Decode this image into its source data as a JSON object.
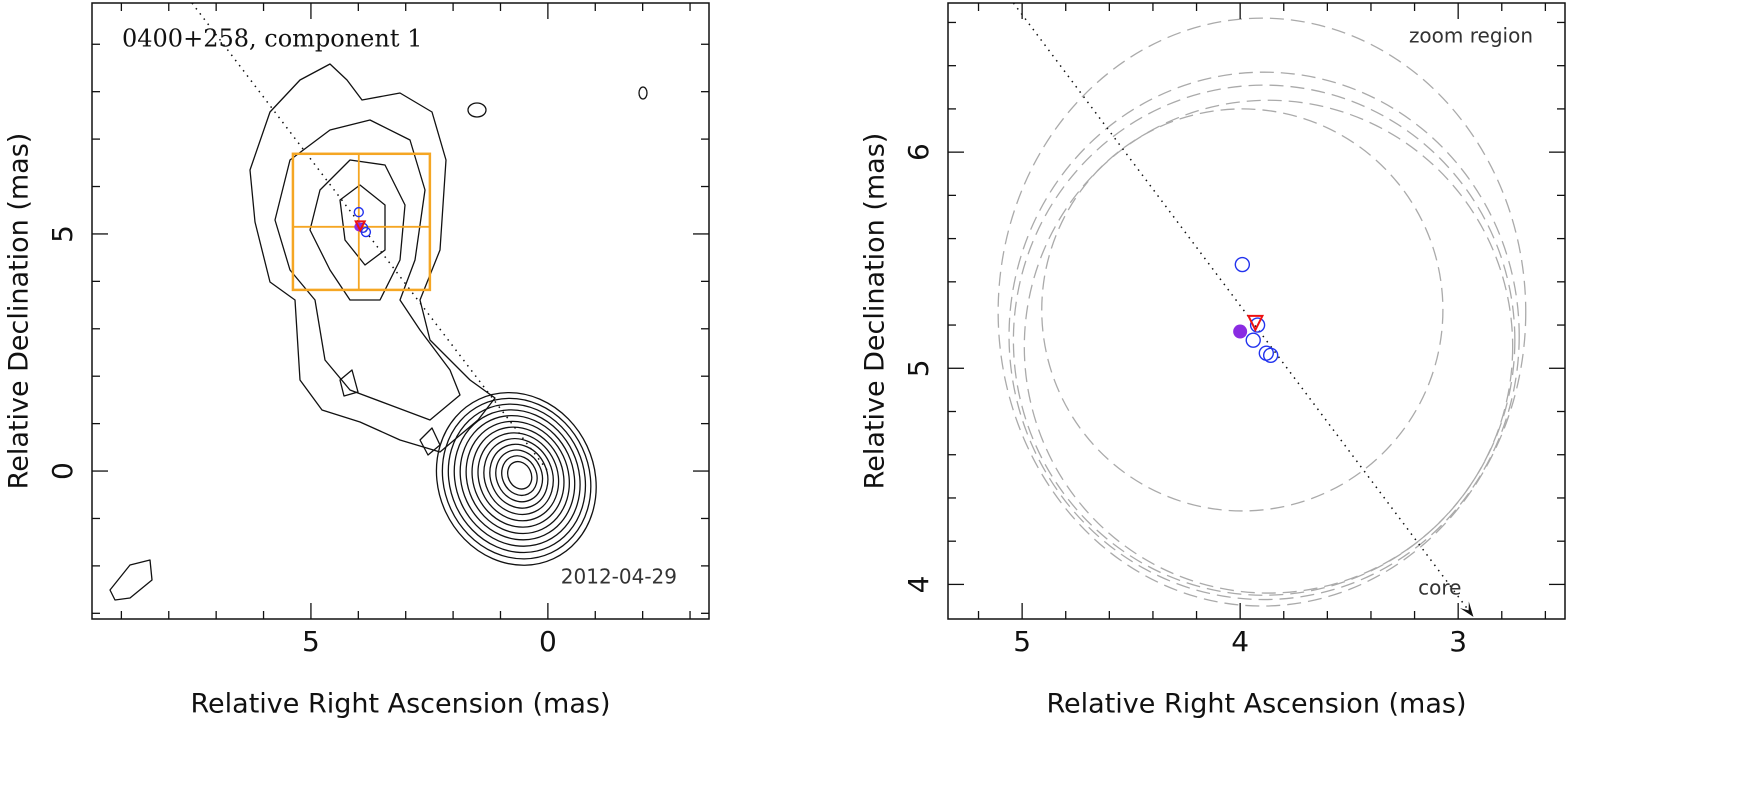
{
  "chart_data": [
    {
      "type": "scatter",
      "title": "0400+258, component 1",
      "annotation": "2012-04-29",
      "xlabel": "Relative Right Ascension (mas)",
      "ylabel": "Relative Declination (mas)",
      "xlim": [
        9.62,
        -3.4
      ],
      "ylim": [
        -3.12,
        9.87
      ],
      "xticks": [
        5,
        0
      ],
      "yticks": [
        0,
        5
      ],
      "xminorticks": [
        9,
        8,
        7,
        6,
        4,
        3,
        2,
        1,
        -1,
        -2,
        -3
      ],
      "yminorticks": [
        -3,
        -2,
        -1,
        1,
        2,
        3,
        4,
        6,
        7,
        8,
        9
      ],
      "jet_line": {
        "x": [
          7.51,
          0
        ],
        "y": [
          9.87,
          0
        ]
      },
      "region": {
        "x": [
          5.38,
          2.49
        ],
        "y": [
          3.82,
          6.69
        ],
        "color": "#f5a623"
      },
      "crosshair": {
        "x": 3.99,
        "y": 5.15
      },
      "series": [
        {
          "marker": "open-circle",
          "color": "#2233ee",
          "x": [
            3.99,
            3.9,
            3.84
          ],
          "y": [
            5.46,
            5.13,
            5.04
          ]
        },
        {
          "marker": "filled-circle",
          "color": "#8a2be2",
          "x": [
            3.99
          ],
          "y": [
            5.15
          ]
        },
        {
          "marker": "triangle-down",
          "color": "#ee1111",
          "x": [
            3.96
          ],
          "y": [
            5.17
          ]
        }
      ]
    },
    {
      "type": "scatter",
      "title": "zoom region",
      "annotation": "core",
      "xlabel": "Relative Right Ascension (mas)",
      "ylabel": "Relative Declination (mas)",
      "xlim": [
        5.34,
        2.51
      ],
      "ylim": [
        3.84,
        6.69
      ],
      "xticks": [
        5,
        4,
        3
      ],
      "yticks": [
        4,
        5,
        6
      ],
      "xminorticks": [
        5.2,
        4.8,
        4.6,
        4.4,
        4.2,
        3.8,
        3.6,
        3.4,
        3.2,
        2.8,
        2.6
      ],
      "yminorticks": [
        4.2,
        4.4,
        4.6,
        4.8,
        5.2,
        5.4,
        5.6,
        5.8,
        6.2,
        6.4,
        6.6
      ],
      "jet_line": {
        "x": [
          5.04,
          2.93
        ],
        "y": [
          6.69,
          3.85
        ]
      },
      "ellipses": {
        "color": "#aaaaaa",
        "x": [
          3.9,
          3.89,
          3.89,
          3.87,
          3.99
        ],
        "y": [
          5.26,
          5.15,
          5.13,
          5.1,
          5.27
        ],
        "rx": [
          1.21,
          1.17,
          1.15,
          1.12,
          0.92
        ],
        "ry": [
          1.36,
          1.22,
          1.18,
          1.14,
          0.93
        ]
      },
      "series": [
        {
          "marker": "open-circle",
          "color": "#2233ee",
          "x": [
            3.99,
            3.92,
            3.94,
            3.88,
            3.86
          ],
          "y": [
            5.48,
            5.2,
            5.13,
            5.07,
            5.06
          ]
        },
        {
          "marker": "filled-circle",
          "color": "#8a2be2",
          "x": [
            4.0
          ],
          "y": [
            5.17
          ]
        },
        {
          "marker": "triangle-down",
          "color": "#ee1111",
          "x": [
            3.93
          ],
          "y": [
            5.21
          ]
        }
      ]
    }
  ]
}
